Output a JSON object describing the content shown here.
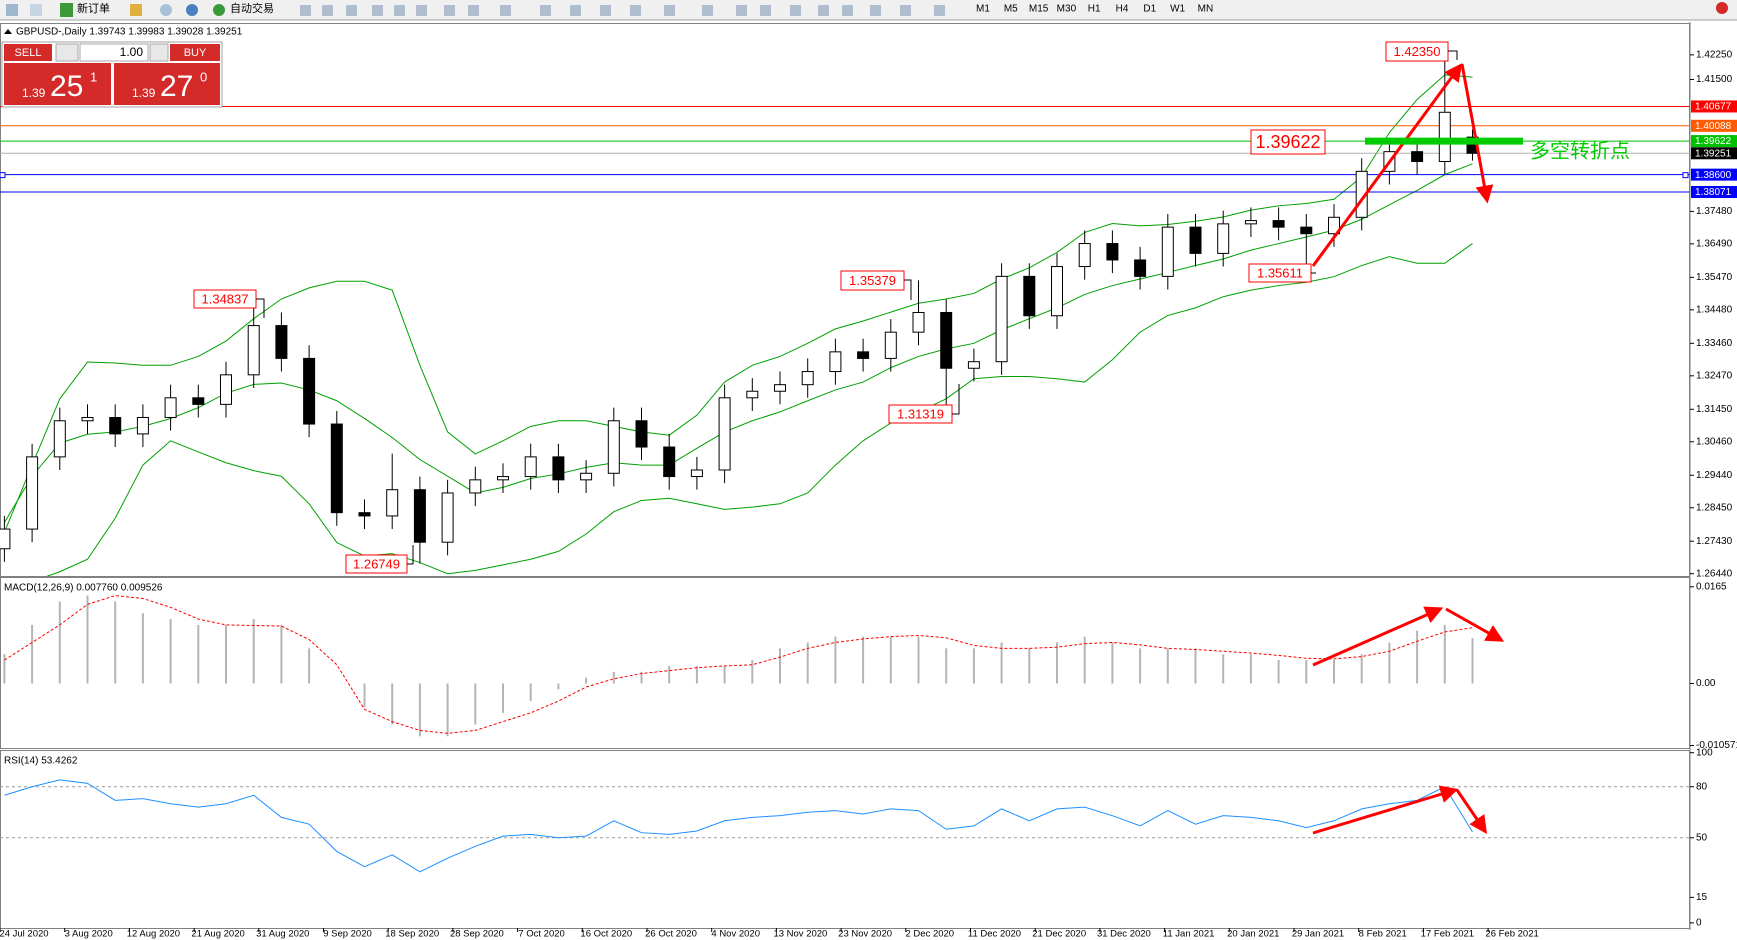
{
  "toolbar": {
    "new_order": "新订单",
    "auto_trading": "自动交易",
    "timeframes": [
      "M1",
      "M5",
      "M15",
      "M30",
      "H1",
      "H4",
      "D1",
      "W1",
      "MN"
    ]
  },
  "trade_panel": {
    "sell": "SELL",
    "buy": "BUY",
    "lot": "1.00",
    "sell_price": [
      "1.39",
      "25",
      "1"
    ],
    "buy_price": [
      "1.39",
      "27",
      "0"
    ]
  },
  "x_tick_labels": [
    "24 Jul 2020",
    "3 Aug 2020",
    "12 Aug 2020",
    "21 Aug 2020",
    "31 Aug 2020",
    "9 Sep 2020",
    "18 Sep 2020",
    "28 Sep 2020",
    "7 Oct 2020",
    "16 Oct 2020",
    "26 Oct 2020",
    "4 Nov 2020",
    "13 Nov 2020",
    "23 Nov 2020",
    "2 Dec 2020",
    "11 Dec 2020",
    "21 Dec 2020",
    "31 Dec 2020",
    "11 Jan 2021",
    "20 Jan 2021",
    "29 Jan 2021",
    "8 Feb 2021",
    "17 Feb 2021",
    "26 Feb 2021"
  ],
  "chart_data": [
    {
      "type": "candlestick",
      "title": "GBPUSD-,Daily  1.39743 1.39983 1.39028 1.39251",
      "up_color": "#ffffff",
      "down_color": "#000000",
      "open": [
        1.272,
        1.278,
        1.3,
        1.311,
        1.312,
        1.307,
        1.312,
        1.318,
        1.316,
        1.325,
        1.34,
        1.33,
        1.31,
        1.283,
        1.282,
        1.29,
        1.274,
        1.289,
        1.293,
        1.294,
        1.3,
        1.293,
        1.295,
        1.311,
        1.303,
        1.294,
        1.296,
        1.318,
        1.32,
        1.322,
        1.326,
        1.332,
        1.33,
        1.338,
        1.344,
        1.327,
        1.329,
        1.355,
        1.343,
        1.358,
        1.365,
        1.36,
        1.355,
        1.37,
        1.362,
        1.371,
        1.372,
        1.37,
        1.368,
        1.373,
        1.387,
        1.393,
        1.39,
        1.39743
      ],
      "high": [
        1.282,
        1.304,
        1.315,
        1.316,
        1.316,
        1.316,
        1.322,
        1.322,
        1.329,
        1.34837,
        1.344,
        1.334,
        1.314,
        1.287,
        1.301,
        1.294,
        1.293,
        1.297,
        1.298,
        1.304,
        1.304,
        1.299,
        1.315,
        1.315,
        1.307,
        1.3,
        1.322,
        1.324,
        1.326,
        1.33,
        1.336,
        1.336,
        1.342,
        1.35379,
        1.348,
        1.333,
        1.359,
        1.359,
        1.362,
        1.369,
        1.369,
        1.364,
        1.374,
        1.374,
        1.375,
        1.376,
        1.376,
        1.374,
        1.377,
        1.391,
        1.397,
        1.397,
        1.4235,
        1.39983
      ],
      "low": [
        1.268,
        1.274,
        1.296,
        1.307,
        1.303,
        1.303,
        1.308,
        1.312,
        1.312,
        1.321,
        1.326,
        1.306,
        1.279,
        1.278,
        1.278,
        1.26749,
        1.27,
        1.285,
        1.289,
        1.29,
        1.289,
        1.289,
        1.291,
        1.299,
        1.29,
        1.29,
        1.292,
        1.314,
        1.316,
        1.318,
        1.322,
        1.326,
        1.326,
        1.334,
        1.31319,
        1.323,
        1.325,
        1.339,
        1.339,
        1.354,
        1.356,
        1.351,
        1.351,
        1.358,
        1.358,
        1.367,
        1.366,
        1.35611,
        1.364,
        1.369,
        1.383,
        1.386,
        1.386,
        1.39028
      ],
      "close": [
        1.278,
        1.3,
        1.311,
        1.312,
        1.307,
        1.312,
        1.318,
        1.316,
        1.325,
        1.34,
        1.33,
        1.31,
        1.283,
        1.282,
        1.29,
        1.274,
        1.289,
        1.293,
        1.294,
        1.3,
        1.293,
        1.295,
        1.311,
        1.303,
        1.294,
        1.296,
        1.318,
        1.32,
        1.322,
        1.326,
        1.332,
        1.33,
        1.338,
        1.344,
        1.327,
        1.329,
        1.355,
        1.343,
        1.358,
        1.365,
        1.36,
        1.355,
        1.37,
        1.362,
        1.371,
        1.372,
        1.37,
        1.368,
        1.373,
        1.387,
        1.393,
        1.39,
        1.405,
        1.39251
      ],
      "bands": {
        "color": "#00a000",
        "upper": [
          1.277,
          1.2975,
          1.3177,
          1.3289,
          1.3286,
          1.3279,
          1.3279,
          1.3306,
          1.3353,
          1.3421,
          1.3481,
          1.3515,
          1.3535,
          1.3535,
          1.3508,
          1.3279,
          1.3076,
          1.3009,
          1.3049,
          1.3093,
          1.311,
          1.311,
          1.3093,
          1.3076,
          1.3066,
          1.3127,
          1.3228,
          1.3279,
          1.3306,
          1.3346,
          1.339,
          1.3414,
          1.3441,
          1.3468,
          1.3481,
          1.3498,
          1.3542,
          1.3576,
          1.3623,
          1.3684,
          1.3711,
          1.3704,
          1.3708,
          1.3718,
          1.3731,
          1.3752,
          1.3765,
          1.3772,
          1.3785,
          1.3853,
          1.3988,
          1.4089,
          1.4164,
          1.4157
        ],
        "middle": [
          1.28,
          1.2941,
          1.3042,
          1.3069,
          1.3076,
          1.3093,
          1.3117,
          1.315,
          1.3194,
          1.3221,
          1.3225,
          1.3204,
          1.3171,
          1.3117,
          1.3059,
          1.2992,
          1.2941,
          1.289,
          1.2907,
          1.2934,
          1.2948,
          1.2968,
          1.2982,
          1.2975,
          1.2975,
          1.3026,
          1.3076,
          1.311,
          1.3137,
          1.3171,
          1.3204,
          1.3228,
          1.3272,
          1.3306,
          1.3329,
          1.3346,
          1.3387,
          1.3421,
          1.3454,
          1.3495,
          1.3522,
          1.3542,
          1.3562,
          1.3583,
          1.3603,
          1.363,
          1.365,
          1.367,
          1.3691,
          1.3724,
          1.3768,
          1.3812,
          1.386,
          1.3893
        ],
        "lower": [
          1.26,
          1.262,
          1.265,
          1.2688,
          1.2813,
          1.2975,
          1.3049,
          1.3015,
          1.2982,
          1.2958,
          1.2941,
          1.2857,
          1.2739,
          1.2698,
          1.2705,
          1.2678,
          1.2644,
          1.2654,
          1.2671,
          1.2688,
          1.2712,
          1.2765,
          1.2833,
          1.2867,
          1.2874,
          1.2857,
          1.284,
          1.2847,
          1.2857,
          1.289,
          1.2975,
          1.3049,
          1.3103,
          1.3137,
          1.3177,
          1.3238,
          1.3245,
          1.3245,
          1.3238,
          1.3228,
          1.3296,
          1.338,
          1.3431,
          1.3454,
          1.3488,
          1.3508,
          1.3522,
          1.3532,
          1.3549,
          1.3583,
          1.361,
          1.359,
          1.359,
          1.365
        ]
      },
      "levels": [
        {
          "value": 1.40677,
          "color": "#ff0000",
          "label_color": "#ff0000"
        },
        {
          "value": 1.40088,
          "color": "#ff5a00",
          "label_color": "#ff5a00"
        },
        {
          "value": 1.39622,
          "color": "#00c000",
          "label_color": "#00c000"
        },
        {
          "value": 1.39251,
          "color": "#b0b0b0",
          "label_color": "#000000"
        },
        {
          "value": 1.386,
          "label": "1.38600",
          "color": "#0000ff",
          "label_color": "#0000ff"
        },
        {
          "value": 1.38071,
          "color": "#0000ff",
          "label_color": "#0000ff"
        }
      ],
      "annotations": [
        {
          "value": 1.34837
        },
        {
          "value": 1.35379
        },
        {
          "value": 1.31319
        },
        {
          "value": 1.26749
        },
        {
          "value": 1.35611
        },
        {
          "value": 1.4235,
          "label": "1.42350"
        },
        {
          "value": 1.39622
        }
      ],
      "note": "多空转折点",
      "annotation_color": "#ff0000",
      "note_color": "#00cc00",
      "ylim": [
        1.2637,
        1.4319
      ],
      "yticks": [
        {
          "value": 1.4225,
          "label": "1.42250"
        },
        {
          "value": 1.415,
          "label": "1.41500"
        },
        {
          "value": 1.3748,
          "label": "1.37480"
        },
        {
          "value": 1.3649,
          "label": "1.36490"
        },
        {
          "value": 1.3547,
          "label": "1.35470"
        },
        {
          "value": 1.3448,
          "label": "1.34480"
        },
        {
          "value": 1.3346,
          "label": "1.33460"
        },
        {
          "value": 1.3247,
          "label": "1.32470"
        },
        {
          "value": 1.3145,
          "label": "1.31450"
        },
        {
          "value": 1.3046,
          "label": "1.30460"
        },
        {
          "value": 1.2944,
          "label": "1.29440"
        },
        {
          "value": 1.2845,
          "label": "1.28450"
        },
        {
          "value": 1.2743,
          "label": "1.27430"
        },
        {
          "value": 1.2644,
          "label": "1.26440"
        }
      ]
    },
    {
      "type": "macd",
      "title": "MACD(12,26,9) 0.007760 0.009526",
      "histogram": [
        0.005,
        0.01,
        0.014,
        0.015,
        0.014,
        0.012,
        0.011,
        0.01,
        0.01,
        0.011,
        0.01,
        0.006,
        0.0,
        -0.004,
        -0.007,
        -0.009,
        -0.009,
        -0.007,
        -0.005,
        -0.003,
        -0.001,
        0.001,
        0.002,
        0.002,
        0.003,
        0.003,
        0.003,
        0.004,
        0.006,
        0.007,
        0.008,
        0.008,
        0.008,
        0.008,
        0.006,
        0.006,
        0.007,
        0.006,
        0.007,
        0.008,
        0.007,
        0.006,
        0.006,
        0.006,
        0.005,
        0.005,
        0.004,
        0.004,
        0.004,
        0.005,
        0.007,
        0.009,
        0.01,
        0.00776
      ],
      "signal": [
        0.004,
        0.007,
        0.01,
        0.0135,
        0.015,
        0.0145,
        0.013,
        0.011,
        0.01,
        0.0099,
        0.0098,
        0.0075,
        0.0032,
        -0.0044,
        -0.0065,
        -0.008,
        -0.0085,
        -0.008,
        -0.0065,
        -0.005,
        -0.003,
        -0.0006,
        0.0008,
        0.0017,
        0.0022,
        0.0027,
        0.003,
        0.0032,
        0.0045,
        0.006,
        0.007,
        0.0076,
        0.008,
        0.0082,
        0.0078,
        0.0065,
        0.006,
        0.006,
        0.0062,
        0.0068,
        0.007,
        0.0066,
        0.006,
        0.0058,
        0.0055,
        0.0052,
        0.0048,
        0.0043,
        0.0042,
        0.0046,
        0.0055,
        0.0072,
        0.0088,
        0.009526
      ],
      "hist_color": "#b4b4b4",
      "signal_color": "#ff0000",
      "ylim": [
        -0.011,
        0.018
      ],
      "yticks": [
        0.0165,
        {
          "value": 0,
          "label": "0.00"
        },
        -0.010571
      ]
    },
    {
      "type": "line",
      "title": "RSI(14) 53.4262",
      "values": [
        75,
        80,
        84,
        82,
        72,
        73,
        70,
        68,
        70,
        75,
        62,
        58,
        42,
        33,
        40,
        30,
        38,
        45,
        51,
        52,
        50,
        51,
        60,
        53,
        52,
        54,
        60,
        62,
        63,
        65,
        66,
        64,
        67,
        66,
        55,
        57,
        67,
        60,
        67,
        68,
        63,
        57,
        66,
        58,
        63,
        62,
        60,
        56,
        60,
        67,
        70,
        72,
        80,
        53.4262
      ],
      "color": "#1e90ff",
      "levels": [
        80,
        50
      ],
      "ylim": [
        -3,
        101
      ],
      "yticks": [
        100,
        80,
        50,
        15,
        0
      ]
    }
  ]
}
